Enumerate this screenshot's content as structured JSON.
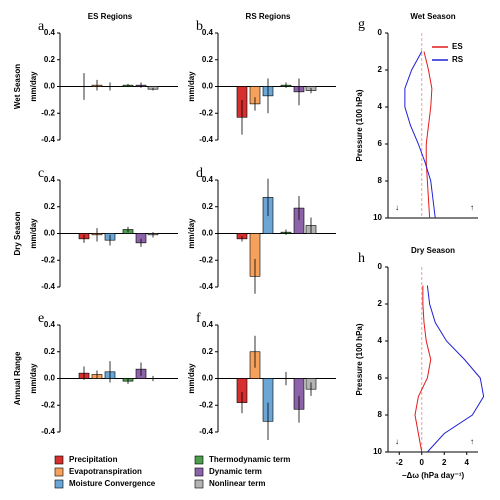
{
  "chart_data": [
    {
      "type": "bar",
      "panel_label": "a",
      "title": "ES Regions",
      "row_label": "Wet Season",
      "y_label": "mm/day",
      "values": [
        0.0,
        0.01,
        0.0,
        0.01,
        0.01,
        -0.02
      ],
      "errors": [
        0.1,
        0.04,
        0.03,
        0.01,
        0.02,
        0.01
      ],
      "ylim": [
        -0.4,
        0.4
      ],
      "yticks": [
        -0.4,
        {
          "value": -0.2,
          "label": "-0.2"
        },
        {
          "value": 0,
          "label": "0.0"
        },
        0.2,
        0.4
      ]
    },
    {
      "type": "bar",
      "panel_label": "b",
      "title": "RS Regions",
      "y_label": "mm/day",
      "values": [
        -0.23,
        -0.13,
        -0.07,
        0.01,
        -0.04,
        -0.03
      ],
      "errors": [
        0.13,
        0.05,
        0.13,
        0.02,
        0.1,
        0.02
      ],
      "ylim": [
        -0.4,
        0.4
      ],
      "yticks": [
        -0.4,
        -0.2,
        {
          "value": 0,
          "label": "0.0"
        },
        0.2,
        0.4
      ]
    },
    {
      "type": "bar",
      "panel_label": "c",
      "row_label": "Dry Season",
      "y_label": "mm/day",
      "values": [
        -0.04,
        -0.01,
        -0.05,
        0.03,
        -0.07,
        -0.01
      ],
      "errors": [
        0.03,
        0.05,
        0.04,
        0.02,
        0.03,
        0.02
      ],
      "ylim": [
        -0.4,
        0.4
      ],
      "yticks": [
        -0.4,
        -0.2,
        {
          "value": 0,
          "label": "0.0"
        },
        0.2,
        0.4
      ]
    },
    {
      "type": "bar",
      "panel_label": "d",
      "y_label": "mm/day",
      "values": [
        -0.04,
        -0.32,
        0.27,
        0.01,
        0.19,
        0.06
      ],
      "errors": [
        0.02,
        0.13,
        0.14,
        0.02,
        0.09,
        0.06
      ],
      "ylim": [
        -0.4,
        0.4
      ],
      "yticks": [
        -0.4,
        -0.2,
        {
          "value": 0,
          "label": "0.0"
        },
        0.2,
        0.4
      ]
    },
    {
      "type": "bar",
      "panel_label": "e",
      "row_label": "Annual Range",
      "y_label": "mm/day",
      "values": [
        0.04,
        0.03,
        0.05,
        -0.02,
        0.07,
        0.0
      ],
      "errors": [
        0.05,
        0.03,
        0.08,
        0.02,
        0.05,
        0.02
      ],
      "ylim": [
        -0.4,
        0.4
      ],
      "yticks": [
        -0.4,
        -0.2,
        {
          "value": 0,
          "label": "0.0"
        },
        0.2,
        0.4
      ]
    },
    {
      "type": "bar",
      "panel_label": "f",
      "y_label": "mm/day",
      "values": [
        -0.18,
        0.2,
        -0.32,
        0.0,
        -0.23,
        -0.08
      ],
      "errors": [
        0.08,
        0.12,
        0.14,
        0.05,
        0.1,
        0.05
      ],
      "ylim": [
        -0.4,
        0.4
      ],
      "yticks": [
        -0.4,
        -0.2,
        {
          "value": 0,
          "label": "0.0"
        },
        0.2,
        0.4
      ]
    },
    {
      "type": "line",
      "panel_label": "g",
      "title": "Wet Season",
      "y_label": "Pressure (100 hPa)",
      "levels": [
        1,
        2,
        3,
        4,
        5,
        6,
        7,
        8,
        9,
        10
      ],
      "series": [
        {
          "name": "ES",
          "color": "#e41a1c",
          "values": [
            0.2,
            0.6,
            0.9,
            0.8,
            0.6,
            0.4,
            0.4,
            0.5,
            0.6,
            0.7
          ]
        },
        {
          "name": "RS",
          "color": "#1f1fd6",
          "values": [
            0.0,
            -0.9,
            -1.5,
            -1.5,
            -1.0,
            -0.3,
            0.3,
            0.8,
            1.0,
            1.2
          ]
        }
      ],
      "xlim": [
        -3,
        5
      ],
      "ylim": [
        0,
        10
      ],
      "yticks": [
        0,
        2,
        4,
        6,
        8,
        10
      ],
      "annotations": [
        "↓",
        "↑"
      ]
    },
    {
      "type": "line",
      "panel_label": "h",
      "title": "Dry Season",
      "y_label": "Pressure (100 hPa)",
      "x_label": "−Δω (hPa day⁻¹)",
      "levels": [
        1,
        2,
        3,
        4,
        5,
        6,
        7,
        8,
        9,
        10
      ],
      "series": [
        {
          "color": "#e41a1c",
          "values": [
            0.1,
            0.1,
            0.2,
            0.4,
            0.8,
            0.5,
            -0.3,
            -0.6,
            -0.3,
            0.0
          ]
        },
        {
          "color": "#1f1fd6",
          "values": [
            0.5,
            0.7,
            1.2,
            2.2,
            3.8,
            5.2,
            5.5,
            4.5,
            2.0,
            0.5
          ]
        }
      ],
      "xlim": [
        -3,
        5
      ],
      "xticks": [
        -2,
        0,
        2,
        4
      ],
      "ylim": [
        0,
        10
      ],
      "yticks": [
        0,
        2,
        4,
        6,
        8,
        10
      ],
      "annotations": [
        "↓",
        "↑"
      ]
    }
  ],
  "legend": {
    "items": [
      {
        "name": "Precipitation",
        "color": "#d62f2f"
      },
      {
        "name": "Evapotranspiration",
        "color": "#f7a25c"
      },
      {
        "name": "Moisture Convergence",
        "color": "#6aa6d6"
      },
      {
        "name": "Thermodynamic term",
        "color": "#4c9e4c"
      },
      {
        "name": "Dynamic term",
        "color": "#8c63a8"
      },
      {
        "name": "Nonlinear term",
        "color": "#b3b3b3"
      }
    ]
  }
}
